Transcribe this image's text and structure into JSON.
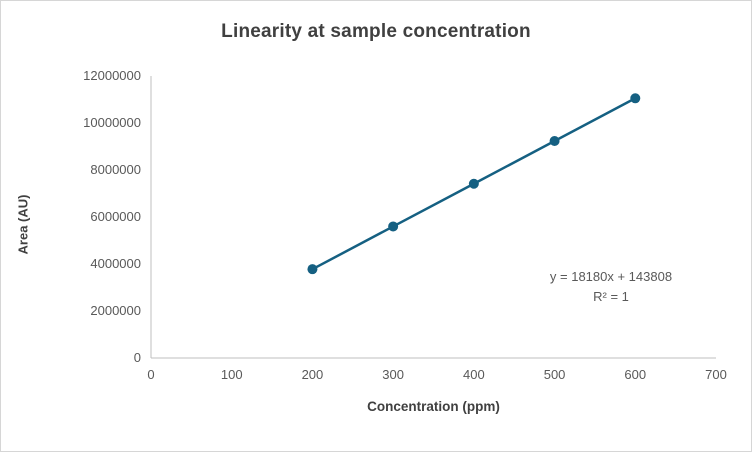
{
  "chart_data": {
    "type": "line",
    "title": "Linearity at sample concentration",
    "xlabel": "Concentration (ppm)",
    "ylabel": "Area (AU)",
    "x": [
      200,
      300,
      400,
      500,
      600
    ],
    "series": [
      {
        "name": "Area",
        "values": [
          3779808,
          5597808,
          7415808,
          9233808,
          11051808
        ]
      }
    ],
    "xlim": [
      0,
      700
    ],
    "ylim": [
      0,
      12000000
    ],
    "x_ticks": [
      0,
      100,
      200,
      300,
      400,
      500,
      600,
      700
    ],
    "y_ticks": [
      0,
      2000000,
      4000000,
      6000000,
      8000000,
      10000000,
      12000000
    ],
    "grid": false,
    "legend": "none",
    "annotation": {
      "line1": "y = 18180x + 143808",
      "line2": "R² = 1"
    },
    "colors": {
      "line": "#156082",
      "marker": "#156082",
      "axis": "#bfbfbf",
      "tick_label": "#595959",
      "title": "#404040"
    }
  }
}
